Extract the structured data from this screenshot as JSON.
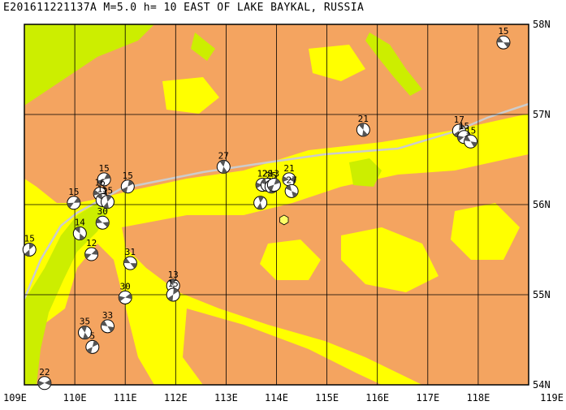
{
  "title": "E201611221137A M=5.0 h= 10 EAST OF LAKE BAYKAL, RUSSIA",
  "event": {
    "lon": 114.15,
    "lat": 55.83,
    "color": "#ffff66"
  },
  "colors": {
    "lowland": "#ccee00",
    "plateau": "#ffff00",
    "upland": "#f4a460",
    "grid": "#000000",
    "fault": "#cccccc"
  },
  "x_ticks": [
    {
      "lon": 109,
      "label": "109E"
    },
    {
      "lon": 110,
      "label": "110E"
    },
    {
      "lon": 111,
      "label": "111E"
    },
    {
      "lon": 112,
      "label": "112E"
    },
    {
      "lon": 113,
      "label": "113E"
    },
    {
      "lon": 114,
      "label": "114E"
    },
    {
      "lon": 115,
      "label": "115E"
    },
    {
      "lon": 116,
      "label": "116E"
    },
    {
      "lon": 117,
      "label": "117E"
    },
    {
      "lon": 118,
      "label": "118E"
    },
    {
      "lon": 119,
      "label": "119E"
    }
  ],
  "y_ticks": [
    {
      "lat": 58,
      "label": "58N"
    },
    {
      "lat": 57,
      "label": "57N"
    },
    {
      "lat": 56,
      "label": "56N"
    },
    {
      "lat": 55,
      "label": "55N"
    },
    {
      "lat": 54,
      "label": "54N"
    }
  ],
  "mechanisms": [
    {
      "lon": 118.5,
      "lat": 57.8,
      "label": "15"
    },
    {
      "lon": 115.72,
      "lat": 56.83,
      "label": "21"
    },
    {
      "lon": 117.62,
      "lat": 56.82,
      "label": "17"
    },
    {
      "lon": 117.72,
      "lat": 56.75,
      "label": "15"
    },
    {
      "lon": 117.85,
      "lat": 56.7,
      "label": "15"
    },
    {
      "lon": 112.95,
      "lat": 56.42,
      "label": "27"
    },
    {
      "lon": 111.05,
      "lat": 56.2,
      "label": "15"
    },
    {
      "lon": 113.72,
      "lat": 56.22,
      "label": "12"
    },
    {
      "lon": 113.82,
      "lat": 56.22,
      "label": "28"
    },
    {
      "lon": 113.9,
      "lat": 56.2,
      "label": "25"
    },
    {
      "lon": 113.95,
      "lat": 56.22,
      "label": "13"
    },
    {
      "lon": 114.25,
      "lat": 56.28,
      "label": "21"
    },
    {
      "lon": 114.3,
      "lat": 56.15,
      "label": "27"
    },
    {
      "lon": 113.68,
      "lat": 56.02,
      "label": ""
    },
    {
      "lon": 110.58,
      "lat": 56.28,
      "label": "15"
    },
    {
      "lon": 110.5,
      "lat": 56.12,
      "label": "16"
    },
    {
      "lon": 110.55,
      "lat": 56.05,
      "label": "15"
    },
    {
      "lon": 110.65,
      "lat": 56.03,
      "label": "15"
    },
    {
      "lon": 109.98,
      "lat": 56.02,
      "label": "15"
    },
    {
      "lon": 110.55,
      "lat": 55.8,
      "label": "30"
    },
    {
      "lon": 110.1,
      "lat": 55.68,
      "label": "14"
    },
    {
      "lon": 109.1,
      "lat": 55.5,
      "label": "15"
    },
    {
      "lon": 110.33,
      "lat": 55.45,
      "label": "12"
    },
    {
      "lon": 111.1,
      "lat": 55.35,
      "label": "31"
    },
    {
      "lon": 111.95,
      "lat": 55.1,
      "label": "13"
    },
    {
      "lon": 111.95,
      "lat": 55.0,
      "label": "15"
    },
    {
      "lon": 111.0,
      "lat": 54.97,
      "label": "30"
    },
    {
      "lon": 110.65,
      "lat": 54.65,
      "label": "33"
    },
    {
      "lon": 110.2,
      "lat": 54.58,
      "label": "35"
    },
    {
      "lon": 110.35,
      "lat": 54.42,
      "label": "5"
    },
    {
      "lon": 109.4,
      "lat": 54.02,
      "label": "22"
    }
  ]
}
